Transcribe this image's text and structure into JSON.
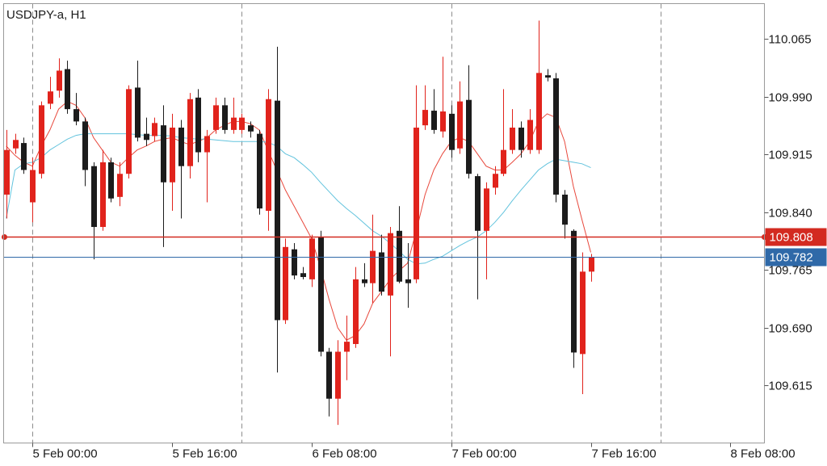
{
  "chart_data": {
    "type": "candlestick",
    "title": "USDJPY-a, H1",
    "open": [
      109.863,
      109.923,
      109.93,
      109.853,
      109.89,
      109.981,
      109.998,
      110.026,
      109.974,
      109.958,
      109.9,
      109.821,
      109.905,
      109.86,
      109.89,
      110.002,
      109.942,
      109.939,
      109.953,
      109.879,
      109.95,
      109.9,
      109.989,
      109.918,
      109.947,
      109.979,
      109.947,
      109.947,
      109.953,
      109.942,
      109.842,
      109.985,
      109.7,
      109.792,
      109.761,
      109.753,
      109.808,
      109.659,
      109.598,
      109.659,
      109.669,
      109.753,
      109.748,
      109.788,
      109.732,
      109.816,
      109.753,
      109.753,
      109.953,
      109.972,
      109.945,
      109.968,
      109.923,
      109.986,
      109.887,
      109.816,
      109.872,
      109.89,
      109.921,
      109.95,
      109.921,
      109.921,
      110.018,
      110.014,
      109.863,
      109.816,
      109.656,
      109.763
    ],
    "high": [
      109.947,
      109.942,
      109.937,
      109.911,
      109.984,
      110.016,
      110.04,
      110.037,
      109.995,
      109.963,
      109.905,
      109.921,
      109.911,
      109.905,
      110.005,
      110.037,
      109.963,
      109.963,
      109.979,
      109.968,
      109.96,
      109.995,
      110.0,
      109.947,
      109.989,
      109.989,
      109.989,
      109.968,
      109.958,
      109.947,
      110.0,
      110.055,
      109.806,
      109.8,
      109.769,
      109.811,
      109.816,
      109.664,
      109.674,
      109.706,
      109.769,
      109.774,
      109.837,
      109.811,
      109.821,
      109.848,
      109.8,
      110.005,
      110.005,
      110.0,
      110.042,
      109.979,
      110.01,
      110.031,
      109.89,
      109.879,
      109.9,
      110.0,
      109.974,
      109.958,
      109.974,
      110.089,
      110.026,
      110.021,
      109.869,
      109.818,
      109.788,
      109.786
    ],
    "low": [
      109.832,
      109.916,
      109.89,
      109.827,
      109.884,
      109.974,
      109.989,
      109.968,
      109.953,
      109.874,
      109.779,
      109.816,
      109.853,
      109.848,
      109.884,
      109.932,
      109.926,
      109.932,
      109.795,
      109.842,
      109.832,
      109.884,
      109.905,
      109.853,
      109.942,
      109.942,
      109.942,
      109.942,
      109.937,
      109.837,
      109.816,
      109.632,
      109.695,
      109.753,
      109.753,
      109.743,
      109.653,
      109.575,
      109.564,
      109.622,
      109.664,
      109.743,
      109.722,
      109.732,
      109.653,
      109.748,
      109.716,
      109.748,
      109.947,
      109.942,
      109.937,
      109.911,
      109.916,
      109.884,
      109.727,
      109.753,
      109.863,
      109.887,
      109.916,
      109.911,
      109.916,
      109.916,
      110.01,
      109.853,
      109.806,
      109.638,
      109.604,
      109.75
    ],
    "close": [
      109.921,
      109.934,
      109.895,
      109.895,
      109.979,
      109.997,
      110.024,
      109.974,
      109.958,
      109.895,
      109.821,
      109.905,
      109.858,
      109.89,
      110.0,
      109.937,
      109.934,
      109.956,
      109.879,
      109.95,
      109.9,
      109.987,
      109.918,
      109.939,
      109.979,
      109.947,
      109.963,
      109.963,
      109.945,
      109.845,
      109.987,
      109.7,
      109.795,
      109.758,
      109.756,
      109.806,
      109.659,
      109.598,
      109.659,
      109.672,
      109.753,
      109.748,
      109.79,
      109.737,
      109.813,
      109.75,
      109.748,
      109.95,
      109.973,
      109.947,
      109.971,
      109.921,
      109.984,
      109.89,
      109.816,
      109.871,
      109.89,
      109.921,
      109.95,
      109.921,
      109.96,
      110.021,
      110.015,
      109.863,
      109.824,
      109.658,
      109.763,
      109.782
    ],
    "up_color": "#e1231c",
    "down_color": "#1c1c1c",
    "series": [
      {
        "color": "#e8483c",
        "values": [
          109.926,
          109.914,
          109.905,
          109.9,
          109.926,
          109.947,
          109.974,
          109.984,
          109.979,
          109.963,
          109.937,
          109.921,
          109.905,
          109.9,
          109.911,
          109.921,
          109.926,
          109.932,
          109.935,
          109.937,
          109.932,
          109.928,
          109.932,
          109.937,
          109.947,
          109.953,
          109.958,
          109.958,
          109.955,
          109.947,
          109.921,
          109.895,
          109.869,
          109.848,
          109.827,
          109.806,
          109.769,
          109.727,
          109.69,
          109.674,
          109.68,
          109.695,
          109.722,
          109.737,
          109.753,
          109.764,
          109.774,
          109.816,
          109.863,
          109.895,
          109.916,
          109.932,
          109.937,
          109.932,
          109.916,
          109.9,
          109.895,
          109.895,
          109.905,
          109.916,
          109.932,
          109.958,
          109.968,
          109.963,
          109.932,
          109.874,
          109.83,
          109.788
        ]
      },
      {
        "color": "#62c3dd",
        "values": [
          109.832,
          109.895,
          109.903,
          109.905,
          109.911,
          109.921,
          109.928,
          109.935,
          109.94,
          109.942,
          109.942,
          109.942,
          109.942,
          109.942,
          109.942,
          109.941,
          109.94,
          109.94,
          109.94,
          109.939,
          109.937,
          109.936,
          109.935,
          109.935,
          109.934,
          109.933,
          109.932,
          109.932,
          109.932,
          109.932,
          109.931,
          109.926,
          109.916,
          109.911,
          109.902,
          109.892,
          109.879,
          109.867,
          109.855,
          109.845,
          109.836,
          109.826,
          109.816,
          109.809,
          109.8,
          109.79,
          109.779,
          109.773,
          109.774,
          109.779,
          109.783,
          109.79,
          109.797,
          109.803,
          109.808,
          109.816,
          109.827,
          109.84,
          109.855,
          109.869,
          109.882,
          109.895,
          109.903,
          109.909,
          109.907,
          109.905,
          109.903,
          109.898
        ]
      }
    ],
    "price_lines": [
      {
        "value": 109.808,
        "color": "#d32a20"
      },
      {
        "value": 109.782,
        "color": "#2f69a8"
      }
    ],
    "ylim": [
      109.5405,
      110.111
    ],
    "yticks": [
      110.065,
      {
        "value": 109.99,
        "label": "109.990"
      },
      109.915,
      {
        "value": 109.84,
        "label": "109.840"
      },
      109.765,
      {
        "value": 109.69,
        "label": "109.690"
      },
      109.615
    ],
    "xlim": [
      -0.3,
      86.9
    ],
    "xticks": [
      {
        "value": 3,
        "label": "5 Feb 00:00"
      },
      {
        "value": 19,
        "label": "5 Feb 16:00"
      },
      {
        "value": 35,
        "label": "6 Feb 08:00"
      },
      {
        "value": 51,
        "label": "7 Feb 00:00"
      },
      {
        "value": 67,
        "label": "7 Feb 16:00"
      },
      {
        "value": 83,
        "label": "8 Feb 08:00"
      }
    ],
    "xgrid": [
      3,
      27,
      51,
      75
    ]
  }
}
